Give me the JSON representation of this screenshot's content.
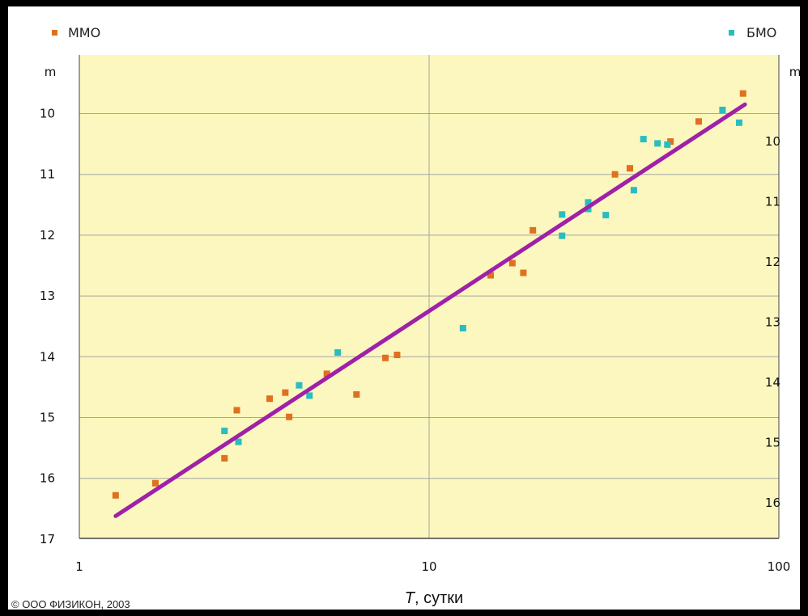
{
  "chart_data": {
    "type": "scatter",
    "legend": {
      "left": "ММО",
      "right": "БМО"
    },
    "colors": {
      "mmo": "#e0701f",
      "bmo": "#2bbcc0",
      "fit": "#a020a8",
      "plot_bg": "#fbf7be"
    },
    "x_axis": {
      "scale": "log",
      "range": [
        1,
        100
      ],
      "ticks": [
        "1",
        "10",
        "100"
      ],
      "label_italic": "T",
      "label_rest": ", сутки"
    },
    "y_left": {
      "unit": "m",
      "range": [
        17,
        9.2
      ],
      "ticks": [
        10,
        11,
        12,
        13,
        14,
        15,
        16,
        17
      ]
    },
    "y_right": {
      "unit": "m",
      "ticks": [
        10,
        11,
        12,
        13,
        14,
        15,
        16
      ]
    },
    "series": [
      {
        "name": "ММО",
        "points": [
          [
            1.27,
            16.28
          ],
          [
            1.65,
            16.08
          ],
          [
            2.6,
            15.67
          ],
          [
            2.82,
            14.88
          ],
          [
            3.5,
            14.69
          ],
          [
            3.88,
            14.59
          ],
          [
            3.98,
            14.99
          ],
          [
            5.1,
            14.28
          ],
          [
            6.2,
            14.62
          ],
          [
            7.5,
            14.02
          ],
          [
            8.1,
            13.97
          ],
          [
            15.0,
            12.66
          ],
          [
            17.3,
            12.46
          ],
          [
            18.6,
            12.62
          ],
          [
            19.8,
            11.92
          ],
          [
            34.0,
            11.0
          ],
          [
            37.5,
            10.9
          ],
          [
            49.0,
            10.46
          ],
          [
            59.0,
            10.13
          ],
          [
            79.0,
            9.67
          ]
        ]
      },
      {
        "name": "БМО",
        "points": [
          [
            2.6,
            15.22
          ],
          [
            2.85,
            15.4
          ],
          [
            4.25,
            14.47
          ],
          [
            4.55,
            14.64
          ],
          [
            5.48,
            13.93
          ],
          [
            12.5,
            13.53
          ],
          [
            24.0,
            11.66
          ],
          [
            24.0,
            12.01
          ],
          [
            28.5,
            11.46
          ],
          [
            28.5,
            11.57
          ],
          [
            32.0,
            11.67
          ],
          [
            38.5,
            11.26
          ],
          [
            41.0,
            10.42
          ],
          [
            45.0,
            10.49
          ],
          [
            48.0,
            10.51
          ],
          [
            69.0,
            9.94
          ],
          [
            77.0,
            10.15
          ]
        ]
      }
    ],
    "fit_line": {
      "x": [
        1.27,
        80
      ],
      "m": [
        16.62,
        9.85
      ]
    }
  },
  "copyright": "© ООО ФИЗИКОН, 2003"
}
